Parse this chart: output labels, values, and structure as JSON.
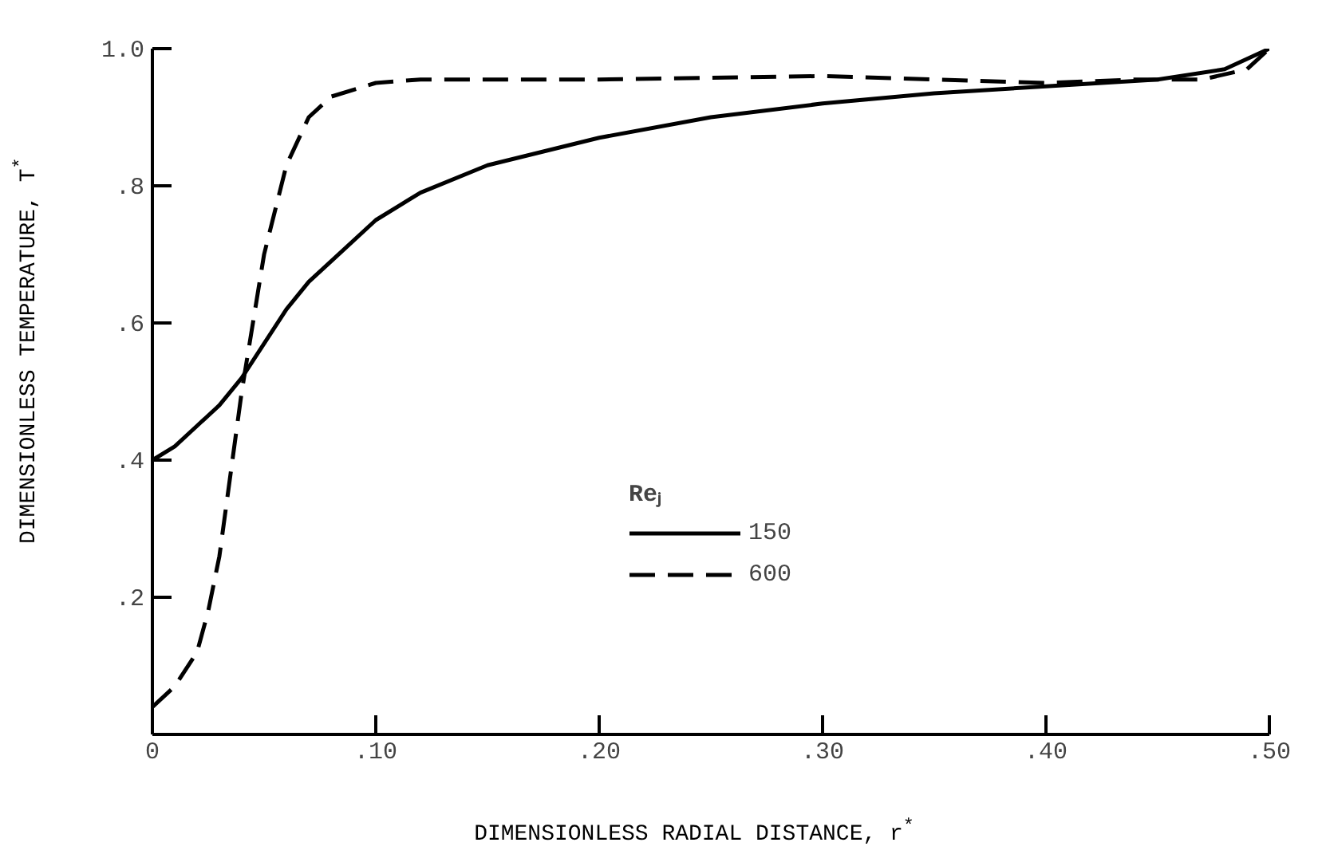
{
  "chart_data": {
    "type": "line",
    "xlabel": "DIMENSIONLESS RADIAL DISTANCE, r$^{*}$",
    "ylabel": "DIMENSIONLESS TEMPERATURE, T$^{*}$",
    "legend_title": "Reⱼ",
    "legend": "bottom",
    "grid": false,
    "marker": "none",
    "xlim": [
      0,
      0.5
    ],
    "ylim": [
      0,
      1.0
    ],
    "xticks": [
      {
        "value": 0,
        "label": "0"
      },
      {
        "value": 0.1,
        "label": ".10"
      },
      {
        "value": 0.2,
        "label": ".20"
      },
      {
        "value": 0.3,
        "label": ".30"
      },
      {
        "value": 0.4,
        "label": ".40"
      },
      {
        "value": 0.5,
        "label": ".50"
      }
    ],
    "yticks": [
      {
        "value": 0.2,
        "label": ".2"
      },
      {
        "value": 0.4,
        "label": ".4"
      },
      {
        "value": 0.6,
        "label": ".6"
      },
      {
        "value": 0.8,
        "label": ".8"
      },
      {
        "value": 1.0,
        "label": "1.0"
      }
    ],
    "series": [
      {
        "name": "150",
        "color": "#000000",
        "line_style": "solid",
        "x": [
          0,
          0.01,
          0.02,
          0.03,
          0.04,
          0.05,
          0.06,
          0.07,
          0.08,
          0.1,
          0.12,
          0.15,
          0.2,
          0.25,
          0.3,
          0.35,
          0.4,
          0.45,
          0.48,
          0.5
        ],
        "values": [
          0.4,
          0.42,
          0.45,
          0.48,
          0.52,
          0.57,
          0.62,
          0.66,
          0.69,
          0.75,
          0.79,
          0.83,
          0.87,
          0.9,
          0.92,
          0.935,
          0.945,
          0.955,
          0.97,
          1.0
        ]
      },
      {
        "name": "600",
        "color": "#000000",
        "line_style": "dashed",
        "x": [
          0,
          0.01,
          0.02,
          0.025,
          0.03,
          0.035,
          0.04,
          0.05,
          0.06,
          0.07,
          0.08,
          0.1,
          0.12,
          0.15,
          0.2,
          0.3,
          0.4,
          0.44,
          0.47,
          0.49,
          0.5
        ],
        "values": [
          0.04,
          0.07,
          0.12,
          0.18,
          0.26,
          0.38,
          0.5,
          0.7,
          0.83,
          0.9,
          0.93,
          0.95,
          0.955,
          0.955,
          0.955,
          0.96,
          0.95,
          0.955,
          0.955,
          0.97,
          1.0
        ]
      }
    ]
  }
}
